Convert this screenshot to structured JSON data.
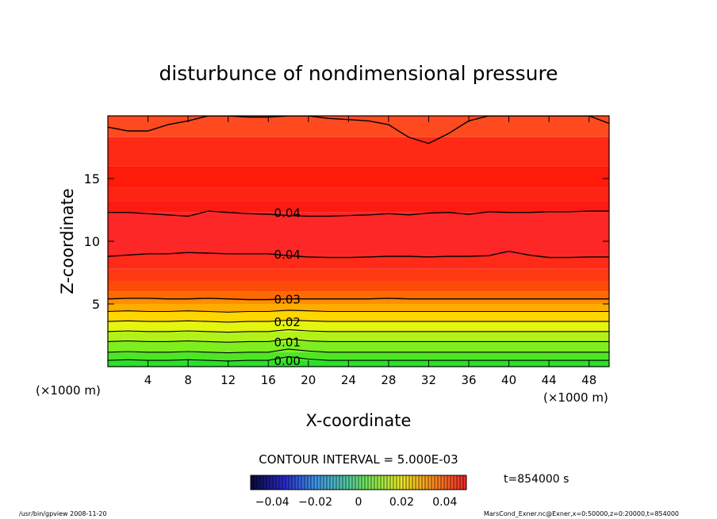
{
  "chart_data": {
    "type": "heatmap",
    "title": "disturbunce of nondimensional pressure",
    "xlabel": "X-coordinate",
    "ylabel": "Z-coordinate",
    "x_unit": "(×1000 m)",
    "y_unit": "(×1000 m)",
    "xlim": [
      0,
      50
    ],
    "ylim": [
      0,
      20
    ],
    "x_ticks": [
      "4",
      "8",
      "12",
      "16",
      "20",
      "24",
      "28",
      "32",
      "36",
      "40",
      "44",
      "48"
    ],
    "y_ticks": [
      "5",
      "10",
      "15"
    ],
    "grid": false,
    "contour_interval_text": "CONTOUR INTERVAL = 5.000E-03",
    "contour_labels": [
      {
        "text": "0.00",
        "x": 16.5,
        "z": 0.5
      },
      {
        "text": "0.01",
        "x": 16.5,
        "z": 2.0
      },
      {
        "text": "0.02",
        "x": 16.5,
        "z": 3.6
      },
      {
        "text": "0.03",
        "x": 16.5,
        "z": 5.4
      },
      {
        "text": "0.04",
        "x": 16.5,
        "z": 9.0
      },
      {
        "text": "0.04",
        "x": 16.5,
        "z": 12.3
      }
    ],
    "contours": [
      {
        "z": [
          0.5,
          0.55,
          0.5,
          0.5,
          0.55,
          0.5,
          0.45,
          0.5,
          0.5,
          0.8,
          0.6,
          0.5,
          0.5,
          0.5,
          0.5,
          0.5,
          0.5,
          0.5,
          0.5,
          0.5,
          0.5,
          0.5,
          0.5,
          0.5,
          0.5,
          0.5
        ]
      },
      {
        "z": [
          1.15,
          1.2,
          1.15,
          1.15,
          1.2,
          1.15,
          1.1,
          1.15,
          1.15,
          1.4,
          1.25,
          1.15,
          1.15,
          1.15,
          1.15,
          1.15,
          1.15,
          1.15,
          1.15,
          1.15,
          1.15,
          1.15,
          1.15,
          1.15,
          1.15,
          1.15
        ]
      },
      {
        "z": [
          2.0,
          2.05,
          2.0,
          2.0,
          2.05,
          2.0,
          1.95,
          2.0,
          2.0,
          2.2,
          2.05,
          2.0,
          2.0,
          2.0,
          2.0,
          2.0,
          2.0,
          2.0,
          2.0,
          2.0,
          2.0,
          2.0,
          2.0,
          2.0,
          2.0,
          2.0
        ]
      },
      {
        "z": [
          2.8,
          2.85,
          2.8,
          2.8,
          2.85,
          2.8,
          2.75,
          2.8,
          2.8,
          2.95,
          2.85,
          2.8,
          2.8,
          2.8,
          2.8,
          2.8,
          2.8,
          2.8,
          2.8,
          2.8,
          2.8,
          2.8,
          2.8,
          2.8,
          2.8,
          2.8
        ]
      },
      {
        "z": [
          3.6,
          3.65,
          3.6,
          3.6,
          3.65,
          3.6,
          3.55,
          3.6,
          3.6,
          3.7,
          3.65,
          3.6,
          3.6,
          3.6,
          3.6,
          3.6,
          3.6,
          3.6,
          3.6,
          3.6,
          3.6,
          3.6,
          3.6,
          3.6,
          3.6,
          3.6
        ]
      },
      {
        "z": [
          4.4,
          4.45,
          4.4,
          4.4,
          4.45,
          4.4,
          4.35,
          4.4,
          4.4,
          4.5,
          4.45,
          4.4,
          4.4,
          4.4,
          4.4,
          4.4,
          4.4,
          4.4,
          4.4,
          4.4,
          4.4,
          4.4,
          4.4,
          4.4,
          4.4,
          4.4
        ]
      },
      {
        "z": [
          5.4,
          5.45,
          5.45,
          5.4,
          5.4,
          5.45,
          5.4,
          5.35,
          5.35,
          5.4,
          5.4,
          5.4,
          5.4,
          5.4,
          5.45,
          5.4,
          5.4,
          5.4,
          5.4,
          5.4,
          5.4,
          5.4,
          5.4,
          5.4,
          5.4,
          5.4
        ]
      },
      {
        "z": [
          8.8,
          8.9,
          9.0,
          9.0,
          9.1,
          9.05,
          9.0,
          9.0,
          9.0,
          8.85,
          8.75,
          8.7,
          8.7,
          8.75,
          8.8,
          8.8,
          8.75,
          8.8,
          8.8,
          8.85,
          9.2,
          8.9,
          8.7,
          8.7,
          8.75,
          8.75
        ]
      },
      {
        "z": [
          12.3,
          12.3,
          12.2,
          12.1,
          12.0,
          12.4,
          12.3,
          12.2,
          12.15,
          12.05,
          12.0,
          12.0,
          12.05,
          12.1,
          12.2,
          12.1,
          12.25,
          12.3,
          12.15,
          12.35,
          12.3,
          12.3,
          12.35,
          12.35,
          12.4,
          12.4
        ]
      },
      {
        "z": [
          19.1,
          18.8,
          18.8,
          19.3,
          19.6,
          20.0,
          20.0,
          19.9,
          19.9,
          20.0,
          20.0,
          19.8,
          19.7,
          19.6,
          19.3,
          18.3,
          17.8,
          18.6,
          19.6,
          20.0,
          20.0,
          20.0,
          20.0,
          20.0,
          20.0,
          19.4
        ]
      }
    ],
    "color_bands": [
      {
        "z0": 0.0,
        "z1": 0.5,
        "color": "#29e02a"
      },
      {
        "z0": 0.5,
        "z1": 1.15,
        "color": "#4ee524"
      },
      {
        "z0": 1.15,
        "z1": 2.0,
        "color": "#7fed1f"
      },
      {
        "z0": 2.0,
        "z1": 2.8,
        "color": "#b3f219"
      },
      {
        "z0": 2.8,
        "z1": 3.6,
        "color": "#e4f50f"
      },
      {
        "z0": 3.6,
        "z1": 4.4,
        "color": "#ffd600"
      },
      {
        "z0": 4.4,
        "z1": 5.0,
        "color": "#ffac00"
      },
      {
        "z0": 5.0,
        "z1": 5.4,
        "color": "#ff8e00"
      },
      {
        "z0": 5.4,
        "z1": 6.0,
        "color": "#ff6a00"
      },
      {
        "z0": 6.0,
        "z1": 6.8,
        "color": "#ff4b08"
      },
      {
        "z0": 6.8,
        "z1": 7.8,
        "color": "#ff3a12"
      },
      {
        "z0": 7.8,
        "z1": 8.8,
        "color": "#ff2a18"
      },
      {
        "z0": 8.8,
        "z1": 12.3,
        "color": "#fd2727"
      },
      {
        "z0": 12.3,
        "z1": 13.2,
        "color": "#fd1a10"
      },
      {
        "z0": 13.2,
        "z1": 14.3,
        "color": "#fe2414"
      },
      {
        "z0": 14.3,
        "z1": 16.0,
        "color": "#ff1a0a"
      },
      {
        "z0": 16.0,
        "z1": 18.3,
        "color": "#ff2a15"
      },
      {
        "z0": 18.3,
        "z1": 20.0,
        "color": "#ff4a20"
      }
    ],
    "colorbar": {
      "ticks": [
        "-0.04",
        "-0.02",
        "0",
        "0.02",
        "0.04"
      ],
      "range": [
        -0.05,
        0.05
      ]
    },
    "time_label": "t=854000 s"
  },
  "footer": {
    "left": "/usr/bin/gpview  2008-11-20",
    "right": "MarsCond_Exner.nc@Exner,x=0:50000,z=0:20000,t=854000"
  }
}
